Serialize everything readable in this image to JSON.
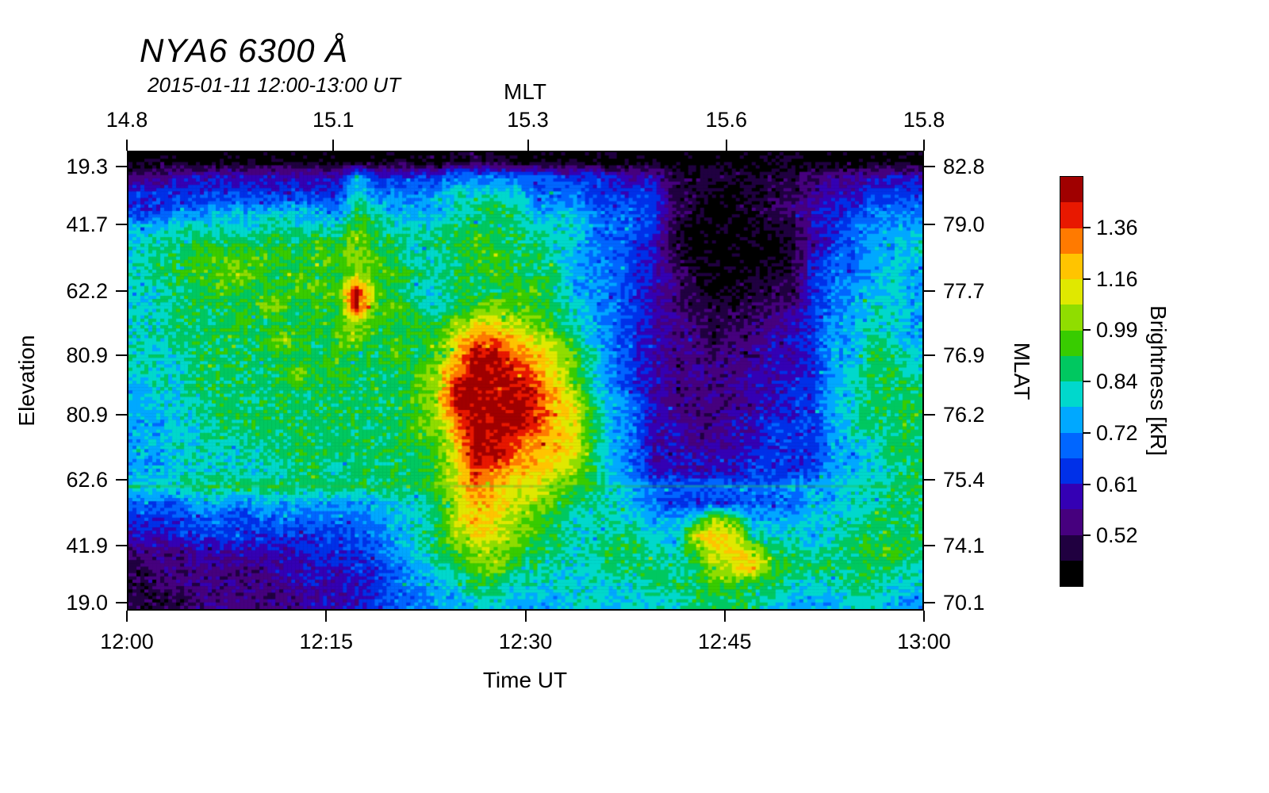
{
  "title": "NYA6 6300 Å",
  "subtitle": "2015-01-11 12:00-13:00 UT",
  "axes": {
    "top": {
      "label": "MLT",
      "ticks": [
        {
          "label": "14.8",
          "pos": 0.0
        },
        {
          "label": "15.1",
          "pos": 0.259
        },
        {
          "label": "15.3",
          "pos": 0.503
        },
        {
          "label": "15.6",
          "pos": 0.752
        },
        {
          "label": "15.8",
          "pos": 1.0
        }
      ]
    },
    "bottom": {
      "label": "Time UT",
      "ticks": [
        {
          "label": "12:00",
          "pos": 0.0
        },
        {
          "label": "12:15",
          "pos": 0.25
        },
        {
          "label": "12:30",
          "pos": 0.5
        },
        {
          "label": "12:45",
          "pos": 0.75
        },
        {
          "label": "13:00",
          "pos": 1.0
        }
      ]
    },
    "left": {
      "label": "Elevation",
      "ticks": [
        {
          "label": "19.3",
          "pos": 0.034
        },
        {
          "label": "41.7",
          "pos": 0.16
        },
        {
          "label": "62.2",
          "pos": 0.305
        },
        {
          "label": "80.9",
          "pos": 0.445
        },
        {
          "label": "80.9",
          "pos": 0.574
        },
        {
          "label": "62.6",
          "pos": 0.716
        },
        {
          "label": "41.9",
          "pos": 0.859
        },
        {
          "label": "19.0",
          "pos": 0.983
        }
      ]
    },
    "right": {
      "label": "MLAT",
      "ticks": [
        {
          "label": "82.8",
          "pos": 0.034
        },
        {
          "label": "79.0",
          "pos": 0.16
        },
        {
          "label": "77.7",
          "pos": 0.305
        },
        {
          "label": "76.9",
          "pos": 0.445
        },
        {
          "label": "76.2",
          "pos": 0.574
        },
        {
          "label": "75.4",
          "pos": 0.716
        },
        {
          "label": "74.1",
          "pos": 0.859
        },
        {
          "label": "70.1",
          "pos": 0.983
        }
      ]
    }
  },
  "colorbar": {
    "label": "Brightness [kR]",
    "ticks": [
      {
        "label": "1.36",
        "pos": 0.125
      },
      {
        "label": "1.16",
        "pos": 0.25
      },
      {
        "label": "0.99",
        "pos": 0.375
      },
      {
        "label": "0.84",
        "pos": 0.5
      },
      {
        "label": "0.72",
        "pos": 0.625
      },
      {
        "label": "0.61",
        "pos": 0.75
      },
      {
        "label": "0.52",
        "pos": 0.875
      }
    ],
    "segments": [
      "#a00000",
      "#e81800",
      "#ff7a00",
      "#ffc400",
      "#e0e800",
      "#90dd00",
      "#38cc00",
      "#00c860",
      "#00d8cc",
      "#00a8ff",
      "#0066ff",
      "#0030e8",
      "#3400b4",
      "#46007e",
      "#200040",
      "#000000"
    ]
  },
  "chart_data": {
    "type": "heatmap",
    "title": "NYA6 6300 Å",
    "subtitle": "2015-01-11 12:00-13:00 UT",
    "xlabel": "Time UT",
    "ylabel_left": "Elevation",
    "ylabel_right": "MLAT",
    "value_label": "Brightness [kR]",
    "x_ticks": [
      "12:00",
      "12:15",
      "12:30",
      "12:45",
      "13:00"
    ],
    "top_ticks_mlt": [
      "14.8",
      "15.1",
      "15.3",
      "15.6",
      "15.8"
    ],
    "y_ticks_elevation": [
      "19.3",
      "41.7",
      "62.2",
      "80.9",
      "80.9",
      "62.6",
      "41.9",
      "19.0"
    ],
    "y_ticks_mlat": [
      "82.8",
      "79.0",
      "77.7",
      "76.9",
      "76.2",
      "75.4",
      "74.1",
      "70.1"
    ],
    "colorbar_boundaries_kR": [
      0.52,
      0.61,
      0.72,
      0.84,
      0.99,
      1.16,
      1.36
    ],
    "level_values_kR": [
      0.44,
      0.48,
      0.54,
      0.58,
      0.64,
      0.68,
      0.76,
      0.8,
      0.88,
      0.94,
      1.04,
      1.1,
      1.22,
      1.3,
      1.42,
      1.5
    ],
    "grid_encoding": "rows top-to-bottom (elevation scan 19.3 -> 80.9 -> 19.0), chars left-to-right (12:00 -> 13:00), hex digit 0-f = brightness level index into level_values_kR / palette",
    "palette": [
      "#000000",
      "#200040",
      "#46007e",
      "#3400b4",
      "#0030e8",
      "#0066ff",
      "#00a8ff",
      "#00d8cc",
      "#00c860",
      "#38cc00",
      "#90dd00",
      "#e0e800",
      "#ffc400",
      "#ff7a00",
      "#e81800",
      "#a00000"
    ],
    "scan_line": {
      "pos": 0.732,
      "color": "#33bb33",
      "opacity": 0.35
    },
    "grid_rows": [
      "0000000000000000111000000000000000000000",
      "2233333333364444555554443331111111222333",
      "4444444444475556777755544441100011233444",
      "4455666666587666788866655541100112344555",
      "6677777877798777888877755541000011345566",
      "77888888898a8878898887755431000001245667",
      "78899999899a9877899887655431000001355667",
      "78899a98998a9987889888665432100011455676",
      "77889989999f9877888998665432100111456676",
      "7788889a898f998789a998765432111122456776",
      "77888988899a9898abbaa8765432211223466776",
      "7788888a989a8989bddcba865432212233466876",
      "7778888888988989cffdcb975432222233466887",
      "77788888a898889adffedb975432222333467887",
      "677888888888889affffeca75432222334467888",
      "677788888888889affffecb86532222334467888",
      "667788888888889adfffecb86533223344467888",
      "6677878888888899cffedcb86533223344467788",
      "6677777888888889bffdccb86533333444466788",
      "6677777788788889bedccba86533333444466778",
      "7778888888888889bdcbba987655555556667788",
      "5556656666666778accba9877654444555667788",
      "4445545555556678bcba987777667a9666777888",
      "3344444444455678abba98778876bcb777678888",
      "22233333344456789aa9887888779bcb88788998",
      "122222233334456789a8877788878abc98888887",
      "1122222233334566788777777788899887778877",
      "1112222223334556677666776777888876667766"
    ]
  }
}
